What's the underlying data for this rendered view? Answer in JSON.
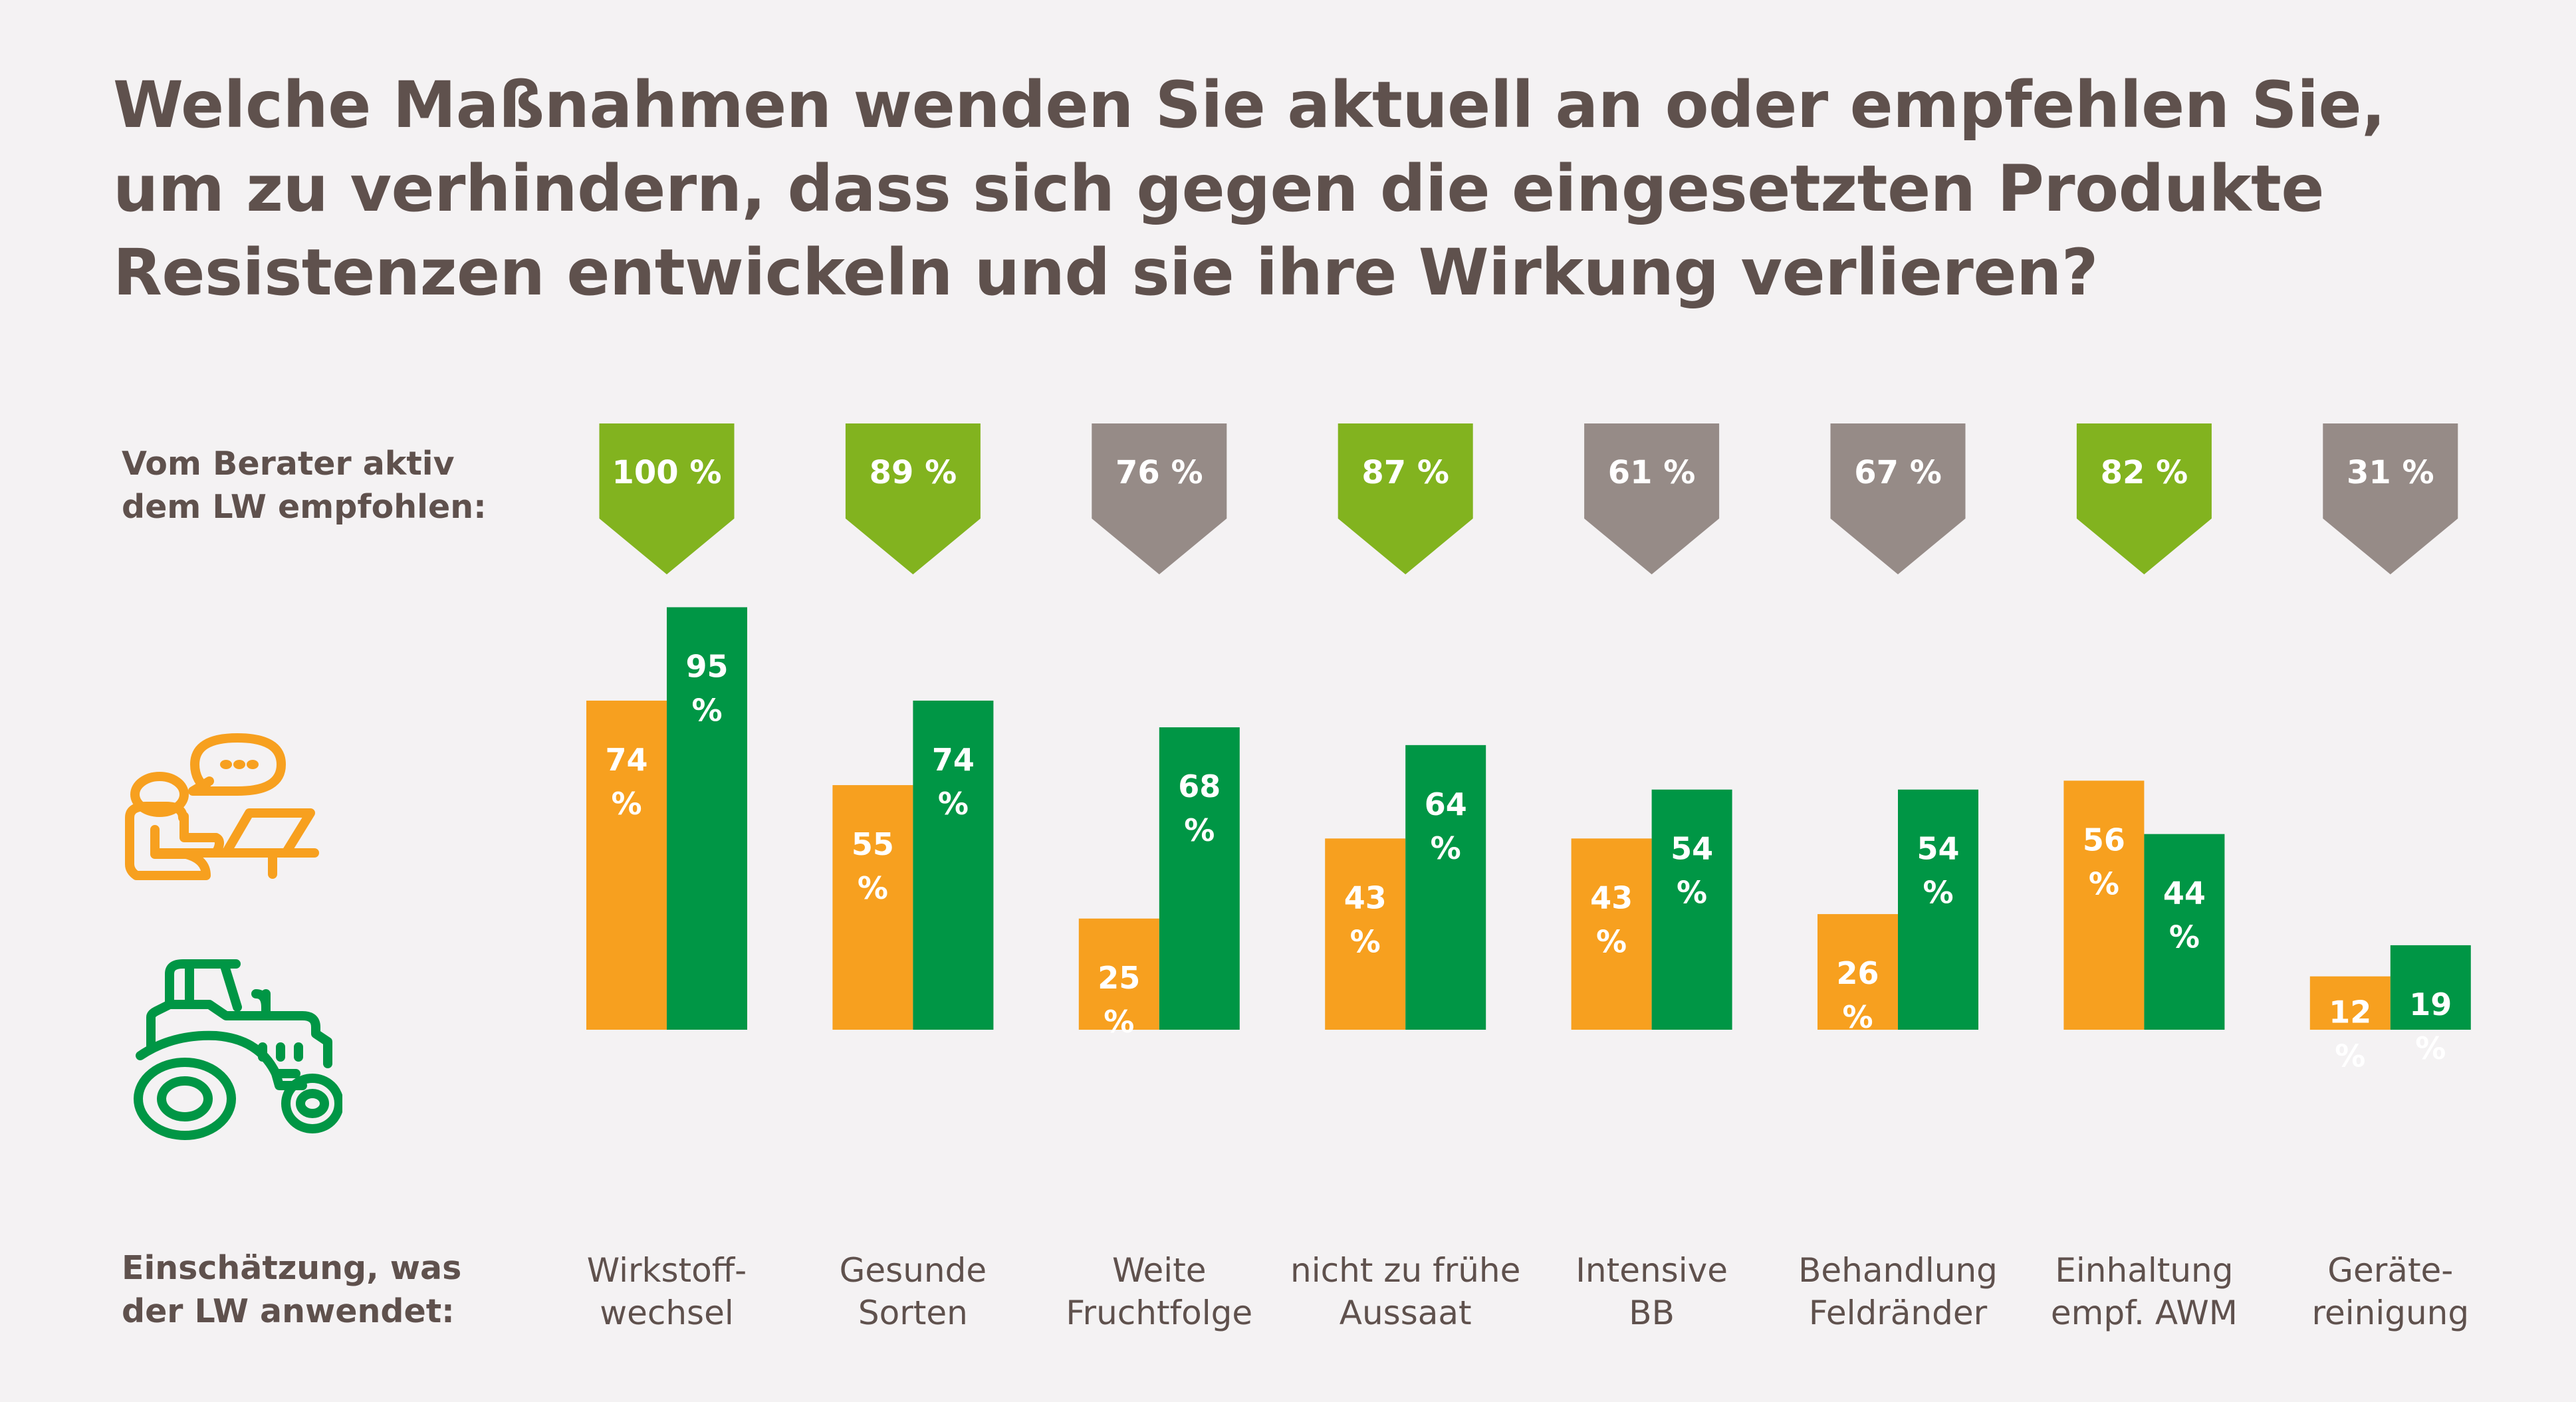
{
  "title": {
    "lines": [
      "Welche Maßnahmen wenden Sie aktuell an oder empfehlen Sie,",
      "um zu verhindern, dass sich gegen die eingesetzten Produkte",
      "Resistenzen entwickeln und sie ihre Wirkung verlieren?"
    ]
  },
  "labels": {
    "recommended": [
      "Vom Berater aktiv",
      "dem LW empfohlen:"
    ],
    "estimate": [
      "Einschätzung, was",
      "der LW anwendet:"
    ]
  },
  "icons": {
    "advisor": "advisor-laptop-icon",
    "farmer": "tractor-icon"
  },
  "colors": {
    "background": "#f4f2f3",
    "text": "#5f514d",
    "advisor_bar": "#f7a01f",
    "farmer_bar": "#009645",
    "tag_high": "#82b31f",
    "tag_low": "#968b87",
    "value_text": "#ffffff"
  },
  "chart_data": {
    "type": "bar",
    "title": "Welche Maßnahmen wenden Sie aktuell an oder empfehlen Sie, um zu verhindern, dass sich gegen die eingesetzten Produkte Resistenzen entwickeln und sie ihre Wirkung verlieren?",
    "xlabel": "Einschätzung, was der LW anwendet:",
    "ylabel": "",
    "ylim": [
      0,
      100
    ],
    "grid": false,
    "categories": [
      [
        "Wirkstoff-",
        "wechsel"
      ],
      [
        "Gesunde",
        "Sorten"
      ],
      [
        "Weite",
        "Fruchtfolge"
      ],
      [
        "nicht zu frühe",
        "Aussaat"
      ],
      [
        "Intensive",
        "BB"
      ],
      [
        "Behandlung",
        "Feldränder"
      ],
      [
        "Einhaltung",
        "empf. AWM"
      ],
      [
        "Geräte-",
        "reinigung"
      ]
    ],
    "series": [
      {
        "name": "Berater (Einschätzung)",
        "icon": "advisor-laptop-icon",
        "color": "#f7a01f",
        "values": [
          74,
          55,
          25,
          43,
          43,
          26,
          56,
          12
        ]
      },
      {
        "name": "Landwirt (Einschätzung)",
        "icon": "tractor-icon",
        "color": "#009645",
        "values": [
          95,
          74,
          68,
          64,
          54,
          54,
          44,
          19
        ]
      }
    ],
    "value_suffix": "%",
    "recommended": {
      "label": "Vom Berater aktiv dem LW empfohlen:",
      "values": [
        100,
        89,
        76,
        87,
        61,
        67,
        82,
        31
      ],
      "highlight": [
        true,
        true,
        false,
        true,
        false,
        false,
        true,
        false
      ]
    }
  }
}
